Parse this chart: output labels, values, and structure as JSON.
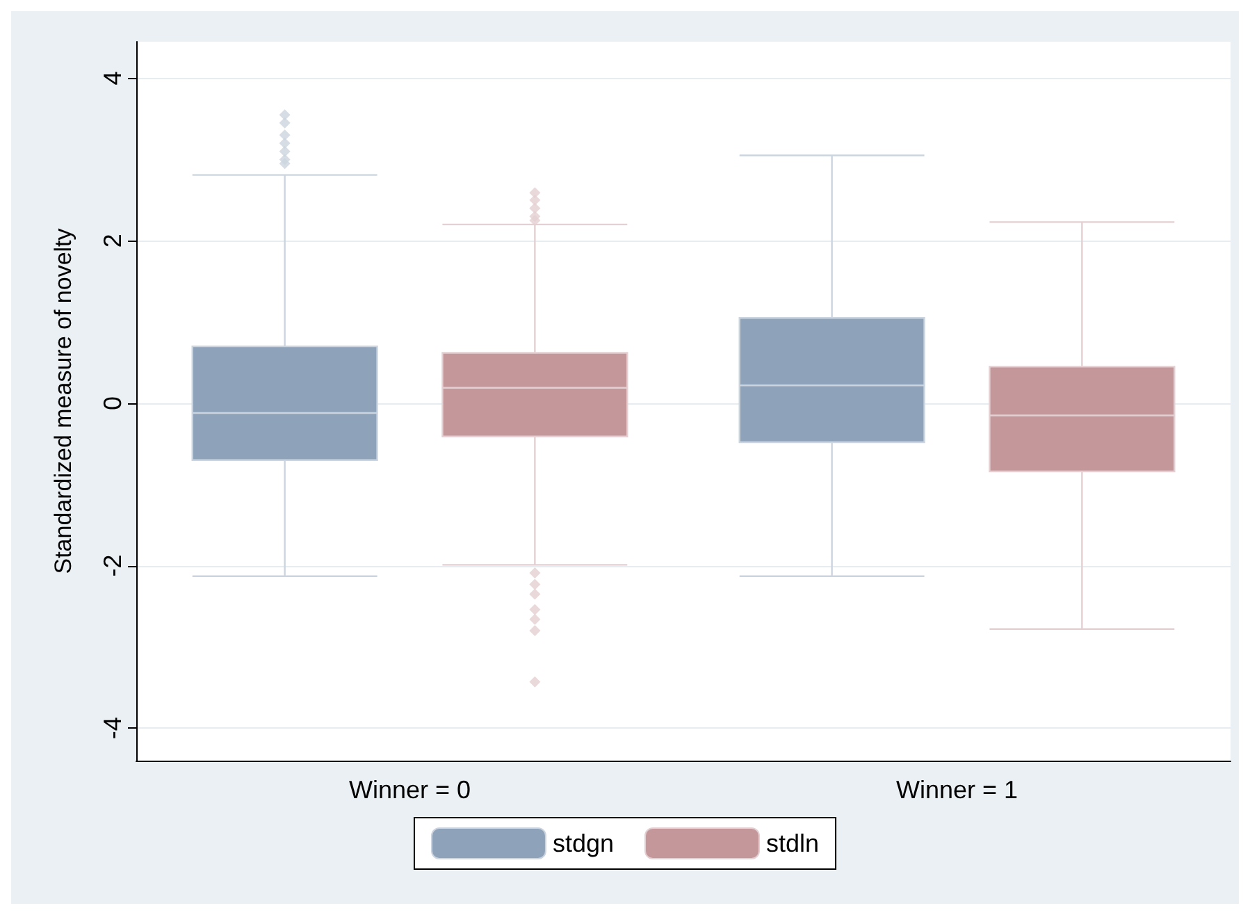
{
  "chart_data": {
    "type": "box",
    "ylabel": "Standardized measure of novelty",
    "categories": [
      "Winner = 0",
      "Winner = 1"
    ],
    "ylim": [
      -4.4,
      4.45
    ],
    "yticks": [
      -4,
      -2,
      0,
      2,
      4
    ],
    "grid": "y",
    "legend": "bottom",
    "series": [
      {
        "name": "stdgn",
        "color": "#8ea3ba",
        "boxes": [
          {
            "low": -2.13,
            "q1": -0.7,
            "median": -0.12,
            "q3": 0.7,
            "high": 2.81,
            "outliers": [
              2.95,
              3.0,
              3.1,
              3.2,
              3.3,
              3.45,
              3.55
            ]
          },
          {
            "low": -2.13,
            "q1": -0.48,
            "median": 0.22,
            "q3": 1.05,
            "high": 3.05
          }
        ]
      },
      {
        "name": "stdln",
        "color": "#c4979b",
        "boxes": [
          {
            "low": -1.99,
            "q1": -0.41,
            "median": 0.19,
            "q3": 0.62,
            "high": 2.2,
            "outliers": [
              2.25,
              2.3,
              2.4,
              2.5,
              2.59,
              -2.09,
              -2.23,
              -2.35,
              -2.54,
              -2.66,
              -2.8,
              -3.43
            ]
          },
          {
            "low": -2.78,
            "q1": -0.84,
            "median": -0.15,
            "q3": 0.45,
            "high": 2.23
          }
        ]
      }
    ]
  }
}
